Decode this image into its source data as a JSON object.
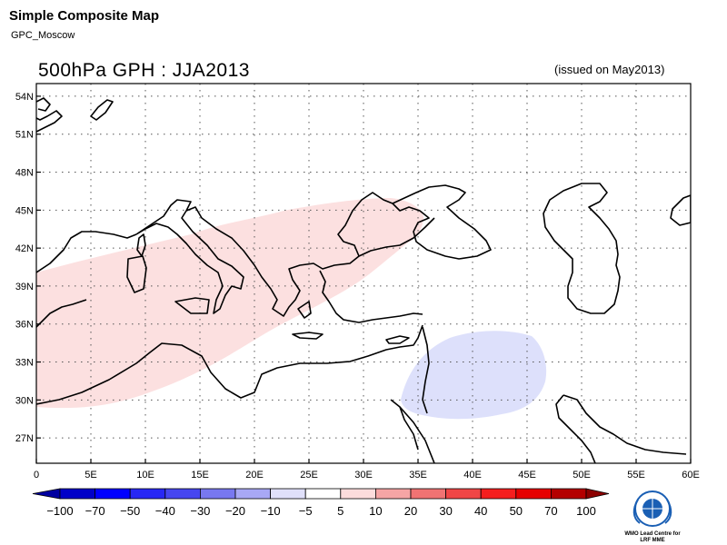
{
  "header": {
    "title": "Simple Composite Map",
    "subtitle": "GPC_Moscow"
  },
  "map": {
    "title": "500hPa GPH : JJA2013",
    "issued": "(issued on May2013)",
    "lon_range": [
      0,
      60
    ],
    "lat_range": [
      25,
      55
    ],
    "lat_labels": [
      "54N",
      "51N",
      "48N",
      "45N",
      "42N",
      "39N",
      "36N",
      "33N",
      "30N",
      "27N"
    ],
    "lon_labels": [
      "0",
      "5E",
      "10E",
      "15E",
      "20E",
      "25E",
      "30E",
      "35E",
      "40E",
      "45E",
      "50E",
      "55E",
      "60E"
    ],
    "grid": "dotted",
    "anomaly_regions": [
      {
        "sign": "positive",
        "category": "5 to 10",
        "color": "#fce0e0",
        "area": "Mediterranean Sea to Black Sea"
      },
      {
        "sign": "negative",
        "category": "-10 to -5",
        "color": "#dde0fb",
        "area": "Middle East"
      }
    ]
  },
  "colorbar": {
    "labels": [
      "-100",
      "-70",
      "-50",
      "-40",
      "-30",
      "-20",
      "-10",
      "-5",
      "5",
      "10",
      "20",
      "30",
      "40",
      "50",
      "70",
      "100"
    ],
    "colors": [
      "#0000c8",
      "#0000ff",
      "#2828f5",
      "#4646f0",
      "#7878f0",
      "#a8a8f5",
      "#e0e0fa",
      "#ffffff",
      "#fcdcdc",
      "#f5a5a5",
      "#f07373",
      "#f04646",
      "#f51e1e",
      "#e60000",
      "#b40000"
    ],
    "left_arrow_color": "#0000a0",
    "right_arrow_color": "#8c0000"
  },
  "logo": {
    "text_line1": "WMO Lead Centre for",
    "text_line2": "LRF MME",
    "color": "#1a5fb4"
  }
}
